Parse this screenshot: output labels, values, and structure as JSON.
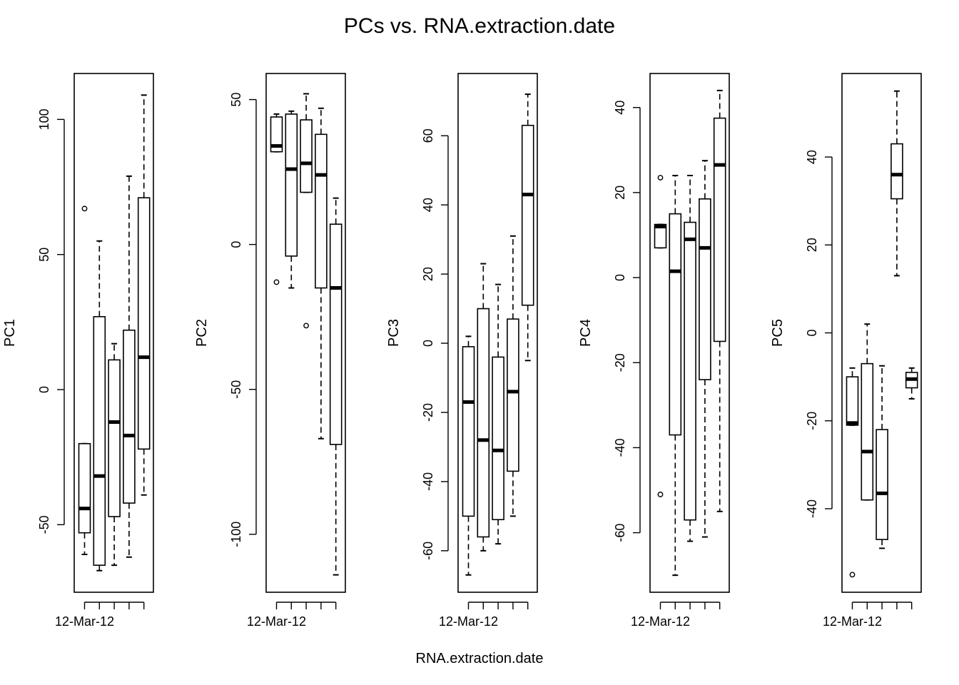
{
  "chart_data": {
    "type": "boxplot",
    "title": "PCs vs. RNA.extraction.date",
    "xlabel": "RNA.extraction.date",
    "x_tick_label": "12-Mar-12",
    "n_groups": 5,
    "panels": [
      {
        "ylabel": "PC1",
        "ylim": [
          -75,
          117
        ],
        "yticks": [
          -50,
          0,
          50,
          100
        ],
        "boxes": [
          {
            "min": -61,
            "q1": -53,
            "median": -44,
            "q3": -20,
            "max": -20,
            "outliers": [
              67
            ]
          },
          {
            "min": -67,
            "q1": -65,
            "median": -32,
            "q3": 27,
            "max": 55,
            "outliers": []
          },
          {
            "min": -65,
            "q1": -47,
            "median": -12,
            "q3": 11,
            "max": 17,
            "outliers": []
          },
          {
            "min": -62,
            "q1": -42,
            "median": -17,
            "q3": 22,
            "max": 79,
            "outliers": []
          },
          {
            "min": -39,
            "q1": -22,
            "median": 12,
            "q3": 71,
            "max": 109,
            "outliers": []
          }
        ]
      },
      {
        "ylabel": "PC2",
        "ylim": [
          -120,
          59
        ],
        "yticks": [
          -100,
          -50,
          0,
          50
        ],
        "boxes": [
          {
            "min": 32,
            "q1": 32,
            "median": 34,
            "q3": 44,
            "max": 45,
            "outliers": [
              -13
            ]
          },
          {
            "min": -15,
            "q1": -4,
            "median": 26,
            "q3": 45,
            "max": 46,
            "outliers": []
          },
          {
            "min": 18,
            "q1": 18,
            "median": 28,
            "q3": 43,
            "max": 52,
            "outliers": [
              -28
            ]
          },
          {
            "min": -67,
            "q1": -15,
            "median": 24,
            "q3": 38,
            "max": 47,
            "outliers": []
          },
          {
            "min": -114,
            "q1": -69,
            "median": -15,
            "q3": 7,
            "max": 16,
            "outliers": []
          }
        ]
      },
      {
        "ylabel": "PC3",
        "ylim": [
          -72,
          78
        ],
        "yticks": [
          -60,
          -40,
          -20,
          0,
          20,
          40,
          60
        ],
        "boxes": [
          {
            "min": -67,
            "q1": -50,
            "median": -17,
            "q3": -1,
            "max": 2,
            "outliers": []
          },
          {
            "min": -60,
            "q1": -56,
            "median": -28,
            "q3": 10,
            "max": 23,
            "outliers": []
          },
          {
            "min": -58,
            "q1": -51,
            "median": -31,
            "q3": -4,
            "max": 17,
            "outliers": []
          },
          {
            "min": -50,
            "q1": -37,
            "median": -14,
            "q3": 7,
            "max": 31,
            "outliers": []
          },
          {
            "min": -5,
            "q1": 11,
            "median": 43,
            "q3": 63,
            "max": 72,
            "outliers": []
          }
        ]
      },
      {
        "ylabel": "PC4",
        "ylim": [
          -74,
          48
        ],
        "yticks": [
          -60,
          -40,
          -20,
          0,
          20,
          40
        ],
        "boxes": [
          {
            "min": 7,
            "q1": 7,
            "median": 12,
            "q3": 12.5,
            "max": 12.5,
            "outliers": [
              23.5,
              -51
            ]
          },
          {
            "min": -70,
            "q1": -37,
            "median": 1.5,
            "q3": 15,
            "max": 24,
            "outliers": []
          },
          {
            "min": -62,
            "q1": -57,
            "median": 9,
            "q3": 13,
            "max": 24,
            "outliers": []
          },
          {
            "min": -61,
            "q1": -24,
            "median": 7,
            "q3": 18.5,
            "max": 27.5,
            "outliers": []
          },
          {
            "min": -55,
            "q1": -15,
            "median": 26.5,
            "q3": 37.5,
            "max": 44,
            "outliers": []
          }
        ]
      },
      {
        "ylabel": "PC5",
        "ylim": [
          -59,
          59
        ],
        "yticks": [
          -40,
          -20,
          0,
          20,
          40
        ],
        "boxes": [
          {
            "min": -21,
            "q1": -21,
            "median": -20.5,
            "q3": -10,
            "max": -8,
            "outliers": [
              -55
            ]
          },
          {
            "min": -38,
            "q1": -38,
            "median": -27,
            "q3": -7,
            "max": 2,
            "outliers": []
          },
          {
            "min": -49,
            "q1": -47,
            "median": -36.5,
            "q3": -22,
            "max": -7.5,
            "outliers": []
          },
          {
            "min": 13,
            "q1": 30.5,
            "median": 36,
            "q3": 43,
            "max": 55,
            "outliers": []
          },
          {
            "min": -15,
            "q1": -12.5,
            "median": -10.5,
            "q3": -9,
            "max": -8,
            "outliers": []
          }
        ]
      }
    ]
  }
}
